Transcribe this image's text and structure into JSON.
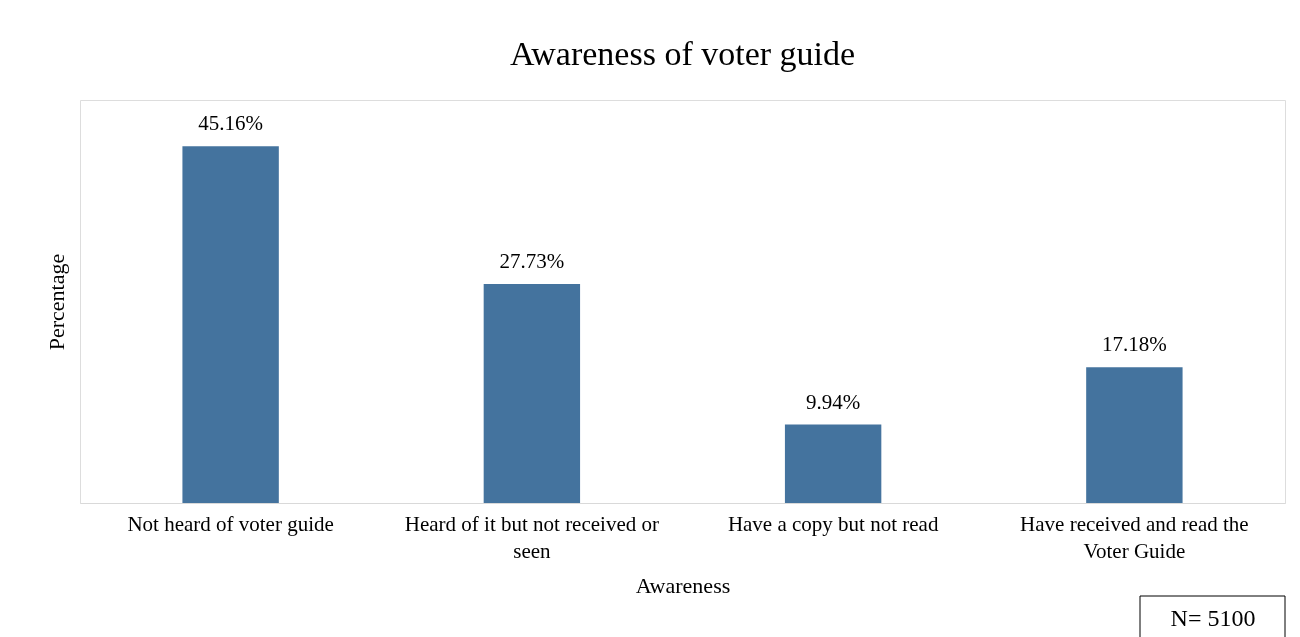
{
  "chart_data": {
    "type": "bar",
    "title": "Awareness of voter guide",
    "xlabel": "Awareness",
    "ylabel": "Percentage",
    "categories": [
      "Not heard of voter guide",
      "Heard of it but not received or seen",
      "Have a copy but not read",
      "Have received and read the Voter Guide"
    ],
    "values": [
      45.16,
      27.73,
      9.94,
      17.18
    ],
    "value_labels": [
      "45.16%",
      "27.73%",
      "9.94%",
      "17.18%"
    ],
    "color": "#44739e",
    "grid": false,
    "tick_labels": "x",
    "annotations": [
      "N= 5100"
    ]
  }
}
